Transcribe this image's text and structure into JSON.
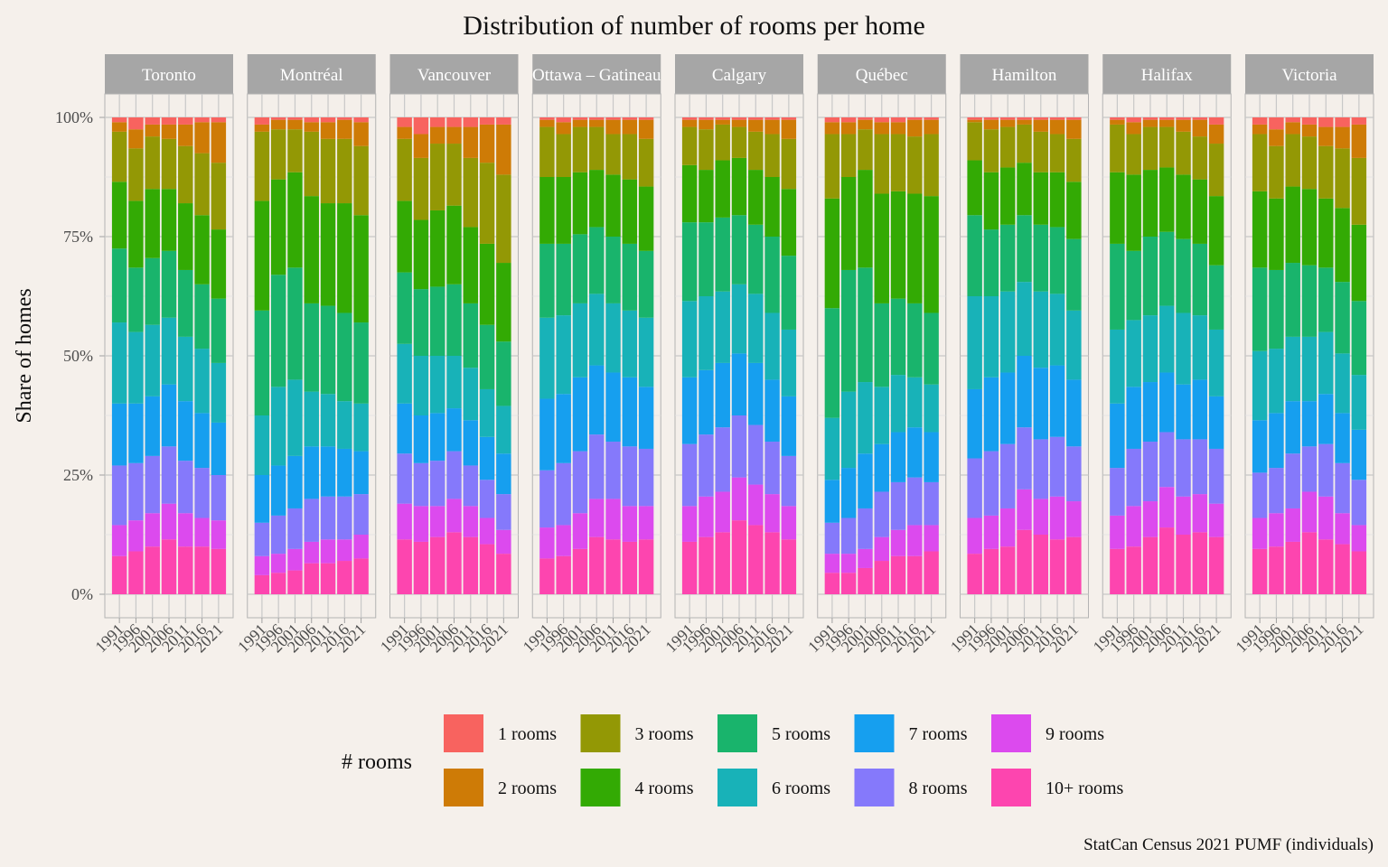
{
  "chart_data": {
    "type": "bar",
    "stacked": true,
    "title": "Distribution of number of rooms per home",
    "ylabel": "Share of homes",
    "xlabel": "",
    "ylim": [
      0,
      1
    ],
    "y_ticks": [
      "0%",
      "25%",
      "50%",
      "75%",
      "100%"
    ],
    "y_tick_values": [
      0,
      0.25,
      0.5,
      0.75,
      1
    ],
    "categories": [
      "1991",
      "1996",
      "2001",
      "2006",
      "2011",
      "2016",
      "2021"
    ],
    "legend": {
      "title": "# rooms",
      "placement": "bottom",
      "entries": [
        {
          "name": "1 rooms",
          "color": "#F8766D"
        },
        {
          "name": "2 rooms",
          "color": "#D39200"
        },
        {
          "name": "3 rooms",
          "color": "#93AA00"
        },
        {
          "name": "4 rooms",
          "color": "#00BA38"
        },
        {
          "name": "5 rooms",
          "color": "#00C19F"
        },
        {
          "name": "6 rooms",
          "color": "#00B9E3"
        },
        {
          "name": "7 rooms",
          "color": "#619CFF"
        },
        {
          "name": "8 rooms",
          "color": "#8478F9"
        },
        {
          "name": "9 rooms",
          "color": "#DB72FB"
        },
        {
          "name": "10+ rooms",
          "color": "#FF61C3"
        }
      ]
    },
    "series_order_bottom_to_top": [
      "10+ rooms",
      "9 rooms",
      "8 rooms",
      "7 rooms",
      "6 rooms",
      "5 rooms",
      "4 rooms",
      "3 rooms",
      "2 rooms",
      "1 rooms"
    ],
    "panels": [
      {
        "name": "Toronto",
        "cumulative_from_bottom": [
          [
            0.08,
            0.145,
            0.27,
            0.4,
            0.57,
            0.725,
            0.865,
            0.97,
            0.99,
            1
          ],
          [
            0.09,
            0.155,
            0.275,
            0.4,
            0.55,
            0.685,
            0.825,
            0.935,
            0.975,
            1
          ],
          [
            0.1,
            0.17,
            0.29,
            0.415,
            0.565,
            0.705,
            0.85,
            0.96,
            0.985,
            1
          ],
          [
            0.115,
            0.19,
            0.31,
            0.44,
            0.58,
            0.72,
            0.85,
            0.955,
            0.985,
            1
          ],
          [
            0.1,
            0.17,
            0.28,
            0.405,
            0.54,
            0.68,
            0.82,
            0.94,
            0.985,
            1
          ],
          [
            0.1,
            0.16,
            0.265,
            0.38,
            0.515,
            0.65,
            0.795,
            0.925,
            0.99,
            1
          ],
          [
            0.095,
            0.155,
            0.25,
            0.36,
            0.485,
            0.62,
            0.765,
            0.905,
            0.99,
            1
          ]
        ]
      },
      {
        "name": "Montréal",
        "cumulative_from_bottom": [
          [
            0.04,
            0.08,
            0.15,
            0.25,
            0.375,
            0.595,
            0.825,
            0.97,
            0.985,
            1
          ],
          [
            0.045,
            0.085,
            0.165,
            0.27,
            0.435,
            0.67,
            0.87,
            0.975,
            0.995,
            1
          ],
          [
            0.05,
            0.095,
            0.18,
            0.29,
            0.45,
            0.685,
            0.885,
            0.975,
            0.995,
            1
          ],
          [
            0.065,
            0.11,
            0.2,
            0.31,
            0.425,
            0.61,
            0.835,
            0.97,
            0.99,
            1
          ],
          [
            0.065,
            0.115,
            0.205,
            0.31,
            0.42,
            0.605,
            0.82,
            0.955,
            0.99,
            1
          ],
          [
            0.07,
            0.115,
            0.205,
            0.305,
            0.405,
            0.59,
            0.82,
            0.955,
            0.995,
            1
          ],
          [
            0.075,
            0.125,
            0.21,
            0.3,
            0.4,
            0.57,
            0.795,
            0.94,
            0.99,
            1
          ]
        ]
      },
      {
        "name": "Vancouver",
        "cumulative_from_bottom": [
          [
            0.115,
            0.19,
            0.295,
            0.4,
            0.525,
            0.675,
            0.825,
            0.955,
            0.98,
            1
          ],
          [
            0.11,
            0.185,
            0.275,
            0.375,
            0.5,
            0.64,
            0.785,
            0.915,
            0.965,
            1
          ],
          [
            0.12,
            0.185,
            0.28,
            0.38,
            0.5,
            0.645,
            0.805,
            0.945,
            0.98,
            1
          ],
          [
            0.13,
            0.2,
            0.3,
            0.39,
            0.5,
            0.65,
            0.815,
            0.945,
            0.98,
            1
          ],
          [
            0.12,
            0.185,
            0.27,
            0.365,
            0.475,
            0.61,
            0.77,
            0.915,
            0.98,
            1
          ],
          [
            0.105,
            0.16,
            0.24,
            0.33,
            0.43,
            0.565,
            0.735,
            0.905,
            0.985,
            1
          ],
          [
            0.085,
            0.135,
            0.21,
            0.295,
            0.395,
            0.53,
            0.695,
            0.88,
            0.985,
            1
          ]
        ]
      },
      {
        "name": "Ottawa – Gatineau",
        "cumulative_from_bottom": [
          [
            0.075,
            0.14,
            0.26,
            0.41,
            0.58,
            0.735,
            0.875,
            0.98,
            0.995,
            1
          ],
          [
            0.08,
            0.145,
            0.275,
            0.42,
            0.585,
            0.735,
            0.875,
            0.965,
            0.99,
            1
          ],
          [
            0.095,
            0.17,
            0.3,
            0.455,
            0.61,
            0.755,
            0.885,
            0.98,
            0.995,
            1
          ],
          [
            0.12,
            0.2,
            0.335,
            0.48,
            0.63,
            0.77,
            0.89,
            0.98,
            0.995,
            1
          ],
          [
            0.115,
            0.2,
            0.32,
            0.465,
            0.61,
            0.75,
            0.88,
            0.965,
            0.995,
            1
          ],
          [
            0.11,
            0.185,
            0.31,
            0.455,
            0.595,
            0.735,
            0.87,
            0.965,
            0.995,
            1
          ],
          [
            0.115,
            0.185,
            0.305,
            0.435,
            0.58,
            0.72,
            0.855,
            0.955,
            0.995,
            1
          ]
        ]
      },
      {
        "name": "Calgary",
        "cumulative_from_bottom": [
          [
            0.11,
            0.185,
            0.315,
            0.455,
            0.615,
            0.78,
            0.9,
            0.98,
            0.995,
            1
          ],
          [
            0.12,
            0.205,
            0.335,
            0.47,
            0.625,
            0.78,
            0.89,
            0.975,
            0.995,
            1
          ],
          [
            0.13,
            0.215,
            0.35,
            0.485,
            0.635,
            0.79,
            0.91,
            0.985,
            0.995,
            1
          ],
          [
            0.155,
            0.245,
            0.375,
            0.505,
            0.65,
            0.795,
            0.915,
            0.98,
            0.995,
            1
          ],
          [
            0.145,
            0.23,
            0.355,
            0.485,
            0.63,
            0.775,
            0.89,
            0.97,
            0.995,
            1
          ],
          [
            0.13,
            0.21,
            0.32,
            0.45,
            0.59,
            0.75,
            0.875,
            0.965,
            0.995,
            1
          ],
          [
            0.115,
            0.185,
            0.29,
            0.415,
            0.555,
            0.71,
            0.85,
            0.955,
            0.995,
            1
          ]
        ]
      },
      {
        "name": "Québec",
        "cumulative_from_bottom": [
          [
            0.045,
            0.085,
            0.15,
            0.24,
            0.37,
            0.6,
            0.83,
            0.965,
            0.99,
            1
          ],
          [
            0.045,
            0.085,
            0.16,
            0.265,
            0.425,
            0.68,
            0.875,
            0.965,
            0.99,
            1
          ],
          [
            0.055,
            0.095,
            0.18,
            0.295,
            0.445,
            0.685,
            0.89,
            0.975,
            0.995,
            1
          ],
          [
            0.07,
            0.12,
            0.215,
            0.315,
            0.435,
            0.61,
            0.84,
            0.965,
            0.99,
            1
          ],
          [
            0.08,
            0.135,
            0.235,
            0.34,
            0.46,
            0.62,
            0.845,
            0.965,
            0.99,
            1
          ],
          [
            0.08,
            0.145,
            0.245,
            0.35,
            0.455,
            0.61,
            0.84,
            0.96,
            0.995,
            1
          ],
          [
            0.09,
            0.145,
            0.235,
            0.34,
            0.44,
            0.59,
            0.835,
            0.965,
            0.995,
            1
          ]
        ]
      },
      {
        "name": "Hamilton",
        "cumulative_from_bottom": [
          [
            0.085,
            0.16,
            0.285,
            0.43,
            0.625,
            0.795,
            0.91,
            0.99,
            0.995,
            1
          ],
          [
            0.095,
            0.165,
            0.3,
            0.455,
            0.625,
            0.765,
            0.885,
            0.975,
            0.995,
            1
          ],
          [
            0.1,
            0.18,
            0.315,
            0.465,
            0.635,
            0.775,
            0.895,
            0.98,
            0.995,
            1
          ],
          [
            0.135,
            0.22,
            0.35,
            0.5,
            0.655,
            0.795,
            0.905,
            0.985,
            0.995,
            1
          ],
          [
            0.125,
            0.2,
            0.325,
            0.475,
            0.635,
            0.775,
            0.885,
            0.97,
            0.995,
            1
          ],
          [
            0.115,
            0.205,
            0.33,
            0.48,
            0.63,
            0.77,
            0.885,
            0.965,
            0.995,
            1
          ],
          [
            0.12,
            0.195,
            0.31,
            0.45,
            0.595,
            0.745,
            0.865,
            0.955,
            0.995,
            1
          ]
        ]
      },
      {
        "name": "Halifax",
        "cumulative_from_bottom": [
          [
            0.095,
            0.165,
            0.265,
            0.4,
            0.555,
            0.735,
            0.885,
            0.985,
            0.995,
            1
          ],
          [
            0.1,
            0.185,
            0.305,
            0.435,
            0.575,
            0.72,
            0.88,
            0.965,
            0.99,
            1
          ],
          [
            0.12,
            0.195,
            0.32,
            0.445,
            0.585,
            0.75,
            0.89,
            0.98,
            0.995,
            1
          ],
          [
            0.14,
            0.225,
            0.34,
            0.465,
            0.605,
            0.76,
            0.895,
            0.98,
            0.995,
            1
          ],
          [
            0.125,
            0.205,
            0.325,
            0.44,
            0.59,
            0.745,
            0.88,
            0.97,
            0.995,
            1
          ],
          [
            0.13,
            0.21,
            0.325,
            0.45,
            0.585,
            0.735,
            0.87,
            0.96,
            0.995,
            1
          ],
          [
            0.12,
            0.19,
            0.305,
            0.415,
            0.555,
            0.69,
            0.835,
            0.945,
            0.985,
            1
          ]
        ]
      },
      {
        "name": "Victoria",
        "cumulative_from_bottom": [
          [
            0.095,
            0.16,
            0.255,
            0.365,
            0.51,
            0.685,
            0.845,
            0.965,
            0.985,
            1
          ],
          [
            0.1,
            0.17,
            0.265,
            0.38,
            0.515,
            0.68,
            0.83,
            0.94,
            0.975,
            1
          ],
          [
            0.11,
            0.18,
            0.295,
            0.405,
            0.54,
            0.695,
            0.855,
            0.965,
            0.99,
            1
          ],
          [
            0.13,
            0.215,
            0.31,
            0.405,
            0.54,
            0.69,
            0.85,
            0.96,
            0.985,
            1
          ],
          [
            0.115,
            0.205,
            0.315,
            0.42,
            0.55,
            0.685,
            0.83,
            0.94,
            0.98,
            1
          ],
          [
            0.105,
            0.17,
            0.275,
            0.38,
            0.505,
            0.655,
            0.81,
            0.935,
            0.98,
            1
          ],
          [
            0.09,
            0.145,
            0.24,
            0.345,
            0.46,
            0.615,
            0.775,
            0.915,
            0.985,
            1
          ]
        ]
      }
    ],
    "caption": "StatCan Census 2021 PUMF (individuals)",
    "grid": true,
    "facet_strip_color": "#a6a6a6"
  }
}
